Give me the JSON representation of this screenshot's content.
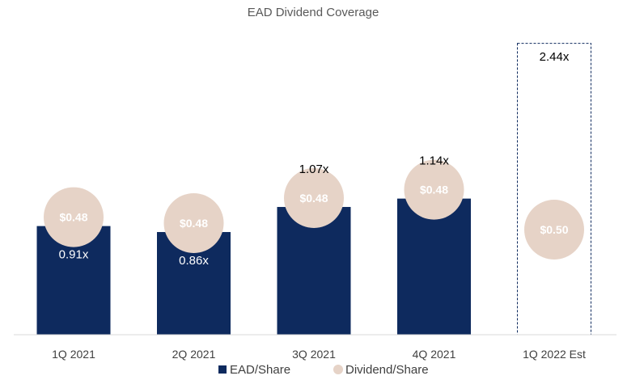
{
  "chart_data": {
    "type": "bar",
    "title": "EAD Dividend Coverage",
    "categories": [
      "1Q 2021",
      "2Q 2021",
      "3Q 2021",
      "4Q 2021",
      "1Q 2022 Est"
    ],
    "series": [
      {
        "name": "EAD/Share",
        "values": [
          0.91,
          0.86,
          1.07,
          1.14,
          2.44
        ],
        "labels": [
          "0.91x",
          "0.86x",
          "1.07x",
          "1.14x",
          "2.44x"
        ],
        "estimated": [
          false,
          false,
          false,
          false,
          true
        ],
        "color": "#0e2a5e"
      },
      {
        "name": "Dividend/Share",
        "values": [
          0.48,
          0.48,
          0.48,
          0.48,
          0.5
        ],
        "labels": [
          "$0.48",
          "$0.48",
          "$0.48",
          "$0.48",
          "$0.50"
        ],
        "color": "#e6d3c7"
      }
    ],
    "ylim": [
      0,
      2.6
    ],
    "grid": false,
    "legend": "bottom"
  }
}
